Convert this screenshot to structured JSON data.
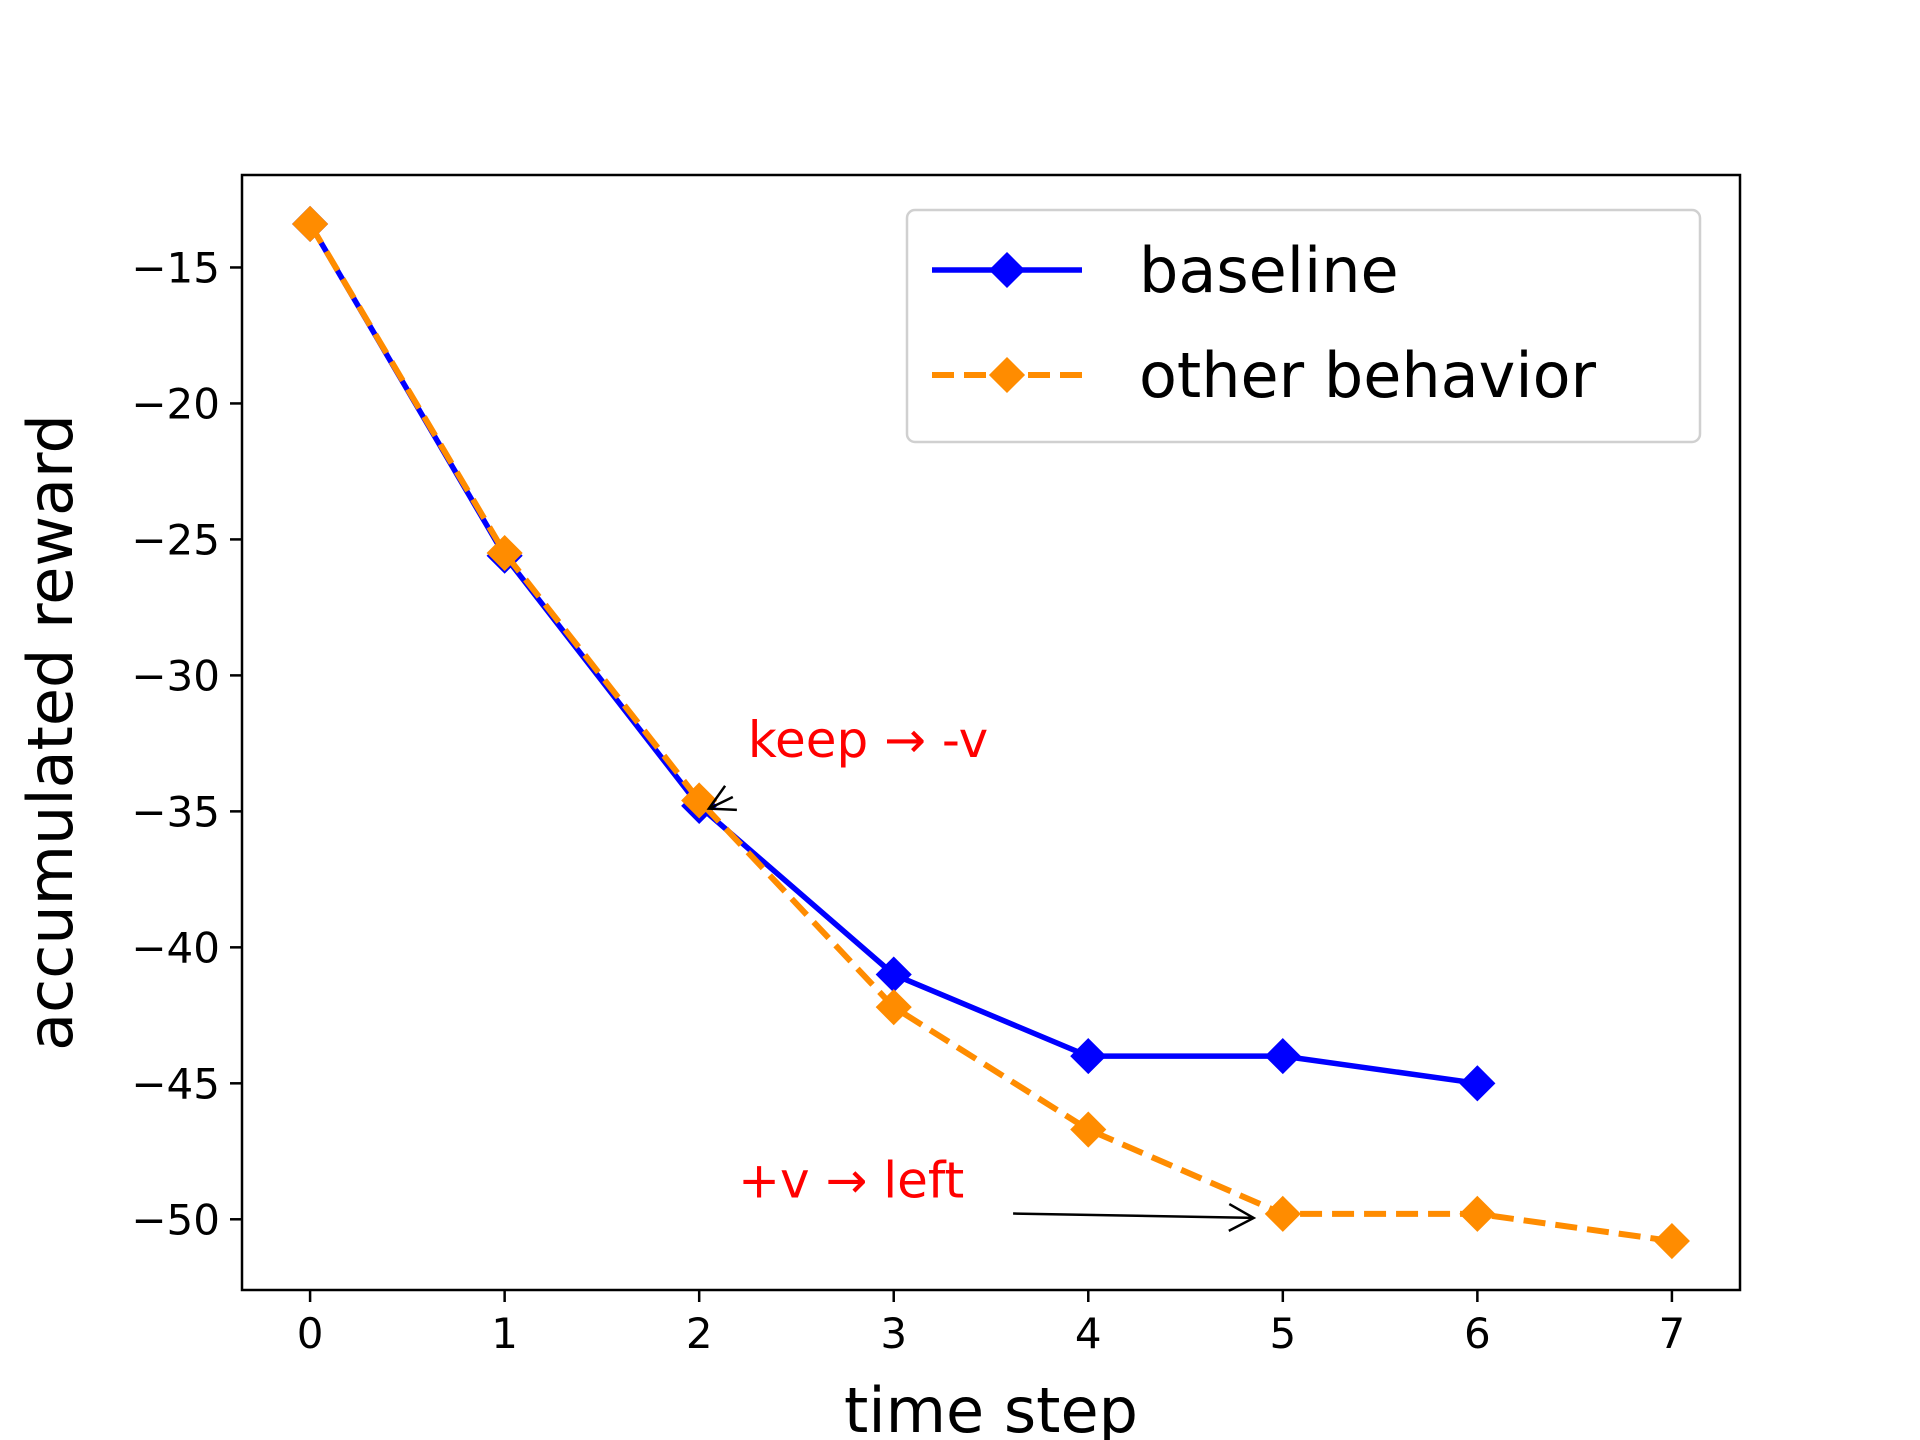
{
  "chart_data": {
    "type": "line",
    "title": "",
    "xlabel": "time step",
    "ylabel": "accumulated reward",
    "xlim": [
      -0.35,
      7.35
    ],
    "ylim": [
      -52.6,
      -11.6
    ],
    "xticks": [
      0,
      1,
      2,
      3,
      4,
      5,
      6,
      7
    ],
    "xtick_labels": [
      "0",
      "1",
      "2",
      "3",
      "4",
      "5",
      "6",
      "7"
    ],
    "yticks": [
      -15,
      -20,
      -25,
      -30,
      -35,
      -40,
      -45,
      -50
    ],
    "ytick_labels": [
      "−15",
      "−20",
      "−25",
      "−30",
      "−35",
      "−40",
      "−45",
      "−50"
    ],
    "grid": false,
    "legend_position": "top-right",
    "series": [
      {
        "name": "baseline",
        "color": "#0000ff",
        "line_style": "solid",
        "marker": "diamond",
        "x": [
          0,
          1,
          2,
          3,
          4,
          5,
          6
        ],
        "y": [
          -13.4,
          -25.6,
          -34.8,
          -41.0,
          -44.0,
          -44.0,
          -45.0
        ]
      },
      {
        "name": "other behavior",
        "color": "#ff8c00",
        "line_style": "dashed",
        "marker": "diamond",
        "x": [
          0,
          1,
          2,
          3,
          4,
          5,
          6,
          7
        ],
        "y": [
          -13.4,
          -25.5,
          -34.6,
          -42.2,
          -46.7,
          -49.8,
          -49.8,
          -50.8
        ]
      }
    ],
    "annotations": [
      {
        "text": "keep → -v",
        "color": "#ff0000",
        "text_x": 2.25,
        "text_y": -33.0,
        "arrow_to_x": 2.05,
        "arrow_to_y": -34.9
      },
      {
        "text": "+v → left",
        "color": "#ff0000",
        "text_x": 2.2,
        "text_y": -49.2,
        "arrow_to_x": 4.85,
        "arrow_to_y": -49.95
      }
    ]
  }
}
